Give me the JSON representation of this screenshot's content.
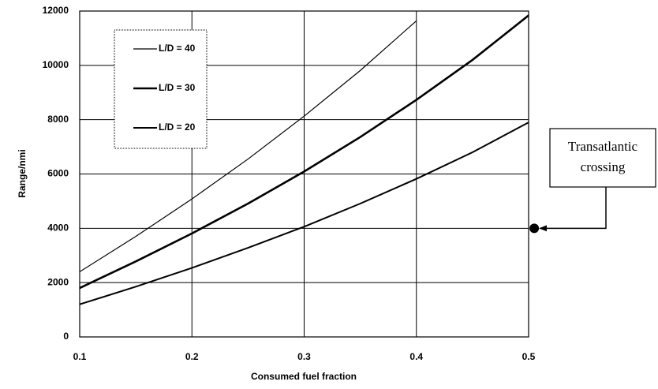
{
  "chart_data": {
    "type": "line",
    "x_label": "Consumed fuel fraction",
    "y_label": "Range/nmi",
    "x": [
      0.1,
      0.15,
      0.2,
      0.25,
      0.3,
      0.35,
      0.4,
      0.45,
      0.5
    ],
    "series": [
      {
        "name": "L/D = 40",
        "color": "#000000",
        "line_width": 1.2,
        "values": [
          2400,
          3700,
          5080,
          6550,
          8130,
          9810,
          11640,
          null,
          null
        ]
      },
      {
        "name": "L/D = 30",
        "color": "#000000",
        "line_width": 2.6,
        "values": [
          1800,
          2780,
          3810,
          4910,
          6090,
          7360,
          8730,
          10200,
          11840
        ]
      },
      {
        "name": "L/D = 20",
        "color": "#000000",
        "line_width": 2,
        "values": [
          1200,
          1850,
          2540,
          3280,
          4060,
          4910,
          5820,
          6800,
          7900
        ]
      }
    ],
    "xlim": [
      0.1,
      0.5
    ],
    "xticks": [
      0.1,
      0.2,
      0.3,
      0.4,
      0.5
    ],
    "ylim": [
      0,
      12000
    ],
    "yticks": [
      0,
      2000,
      4000,
      6000,
      8000,
      10000,
      12000
    ],
    "grid": true,
    "legend": "upper left",
    "annotation": {
      "lines": [
        "Transatlantic",
        "crossing"
      ],
      "x": 0.505,
      "y": 4000
    }
  }
}
